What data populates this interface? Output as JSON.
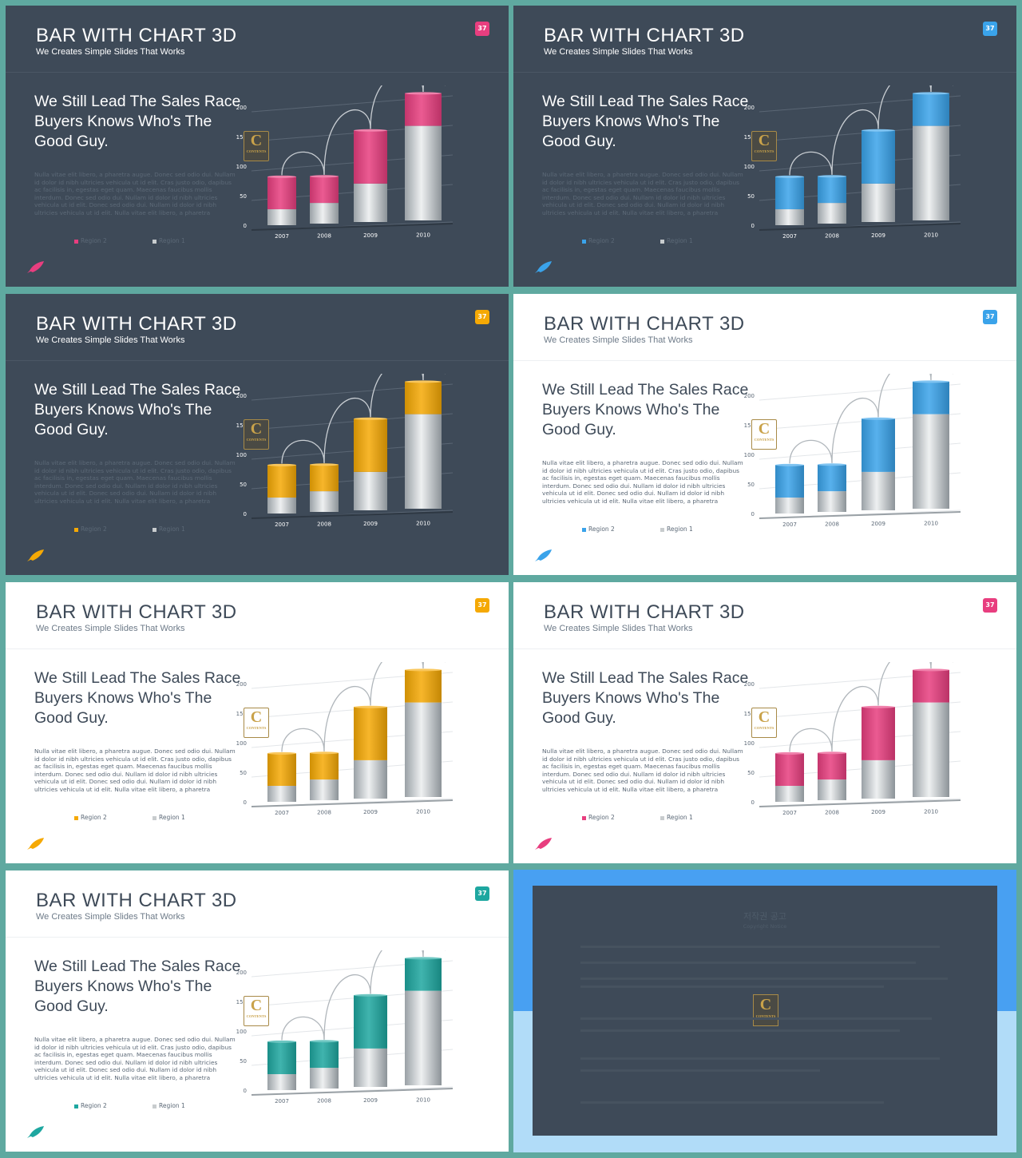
{
  "theme": {
    "dark_bg": "#3e4a58",
    "light_bg": "#ffffff",
    "frame": "#5fa9a0",
    "silver": "#c8ccce"
  },
  "slides": [
    {
      "title": "BAR WITH CHART 3D",
      "subtitle": "We Creates Simple Slides That Works",
      "badge": "37",
      "variant": "dark",
      "accent": "#e83e7f",
      "heading_lines": [
        "We Still Lead The Sales Race",
        "Buyers Knows Who's The",
        "Good Guy."
      ],
      "body": "Nulla vitae elit libero, a pharetra augue. Donec sed odio dui. Nullam id dolor id nibh ultricies vehicula ut id elit. Cras justo odio, dapibus ac facilisis in, egestas eget quam. Maecenas faucibus mollis interdum. Donec sed odio dui. Nullam id dolor id nibh ultricies vehicula ut id elit. Donec sed odio dui. Nullam id dolor id nibh ultricies vehicula ut id elit. Nulla vitae elit libero, a pharetra",
      "legend": [
        "Region 2",
        "Region 1"
      ],
      "logo_text": "C",
      "logo_sub": "CONTENTS"
    },
    {
      "title": "BAR WITH CHART 3D",
      "subtitle": "We Creates Simple Slides That Works",
      "badge": "37",
      "variant": "dark",
      "accent": "#3aa3ea",
      "heading_lines": [
        "We Still Lead The Sales Race",
        "Buyers Knows Who's The",
        "Good Guy."
      ],
      "body": "Nulla vitae elit libero, a pharetra augue. Donec sed odio dui. Nullam id dolor id nibh ultricies vehicula ut id elit. Cras justo odio, dapibus ac facilisis in, egestas eget quam. Maecenas faucibus mollis interdum. Donec sed odio dui. Nullam id dolor id nibh ultricies vehicula ut id elit. Donec sed odio dui. Nullam id dolor id nibh ultricies vehicula ut id elit. Nulla vitae elit libero, a pharetra",
      "legend": [
        "Region 2",
        "Region 1"
      ],
      "logo_text": "C",
      "logo_sub": "CONTENTS"
    },
    {
      "title": "BAR WITH CHART 3D",
      "subtitle": "We Creates Simple Slides That Works",
      "badge": "37",
      "variant": "dark",
      "accent": "#f5a905",
      "heading_lines": [
        "We Still Lead The Sales Race",
        "Buyers Knows Who's The",
        "Good Guy."
      ],
      "body": "Nulla vitae elit libero, a pharetra augue. Donec sed odio dui. Nullam id dolor id nibh ultricies vehicula ut id elit. Cras justo odio, dapibus ac facilisis in, egestas eget quam. Maecenas faucibus mollis interdum. Donec sed odio dui. Nullam id dolor id nibh ultricies vehicula ut id elit. Donec sed odio dui. Nullam id dolor id nibh ultricies vehicula ut id elit. Nulla vitae elit libero, a pharetra",
      "legend": [
        "Region 2",
        "Region 1"
      ],
      "logo_text": "C",
      "logo_sub": "CONTENTS"
    },
    {
      "title": "BAR WITH CHART 3D",
      "subtitle": "We Creates Simple Slides That Works",
      "badge": "37",
      "variant": "light",
      "accent": "#3aa3ea",
      "heading_lines": [
        "We Still Lead The Sales Race",
        "Buyers Knows Who's The",
        "Good Guy."
      ],
      "body": "Nulla vitae elit libero, a pharetra augue. Donec sed odio dui. Nullam id dolor id nibh ultricies vehicula ut id elit. Cras justo odio, dapibus ac facilisis in, egestas eget quam. Maecenas faucibus mollis interdum. Donec sed odio dui. Nullam id dolor id nibh ultricies vehicula ut id elit. Donec sed odio dui. Nullam id dolor id nibh ultricies vehicula ut id elit. Nulla vitae elit libero, a pharetra",
      "legend": [
        "Region 2",
        "Region 1"
      ],
      "logo_text": "C",
      "logo_sub": "CONTENTS"
    },
    {
      "title": "BAR WITH CHART 3D",
      "subtitle": "We Creates Simple Slides That Works",
      "badge": "37",
      "variant": "light",
      "accent": "#f5a905",
      "heading_lines": [
        "We Still Lead The Sales Race",
        "Buyers Knows Who's The",
        "Good Guy."
      ],
      "body": "Nulla vitae elit libero, a pharetra augue. Donec sed odio dui. Nullam id dolor id nibh ultricies vehicula ut id elit. Cras justo odio, dapibus ac facilisis in, egestas eget quam. Maecenas faucibus mollis interdum. Donec sed odio dui. Nullam id dolor id nibh ultricies vehicula ut id elit. Donec sed odio dui. Nullam id dolor id nibh ultricies vehicula ut id elit. Nulla vitae elit libero, a pharetra",
      "legend": [
        "Region 2",
        "Region 1"
      ],
      "logo_text": "C",
      "logo_sub": "CONTENTS"
    },
    {
      "title": "BAR WITH CHART 3D",
      "subtitle": "We Creates Simple Slides That Works",
      "badge": "37",
      "variant": "light",
      "accent": "#e83e7f",
      "heading_lines": [
        "We Still Lead The Sales Race",
        "Buyers Knows Who's The",
        "Good Guy."
      ],
      "body": "Nulla vitae elit libero, a pharetra augue. Donec sed odio dui. Nullam id dolor id nibh ultricies vehicula ut id elit. Cras justo odio, dapibus ac facilisis in, egestas eget quam. Maecenas faucibus mollis interdum. Donec sed odio dui. Nullam id dolor id nibh ultricies vehicula ut id elit. Donec sed odio dui. Nullam id dolor id nibh ultricies vehicula ut id elit. Nulla vitae elit libero, a pharetra",
      "legend": [
        "Region 2",
        "Region 1"
      ],
      "logo_text": "C",
      "logo_sub": "CONTENTS"
    },
    {
      "title": "BAR WITH CHART 3D",
      "subtitle": "We Creates Simple Slides That Works",
      "badge": "37",
      "variant": "light",
      "accent": "#1ea7a0",
      "heading_lines": [
        "We Still Lead The Sales Race",
        "Buyers Knows Who's The",
        "Good Guy."
      ],
      "body": "Nulla vitae elit libero, a pharetra augue. Donec sed odio dui. Nullam id dolor id nibh ultricies vehicula ut id elit. Cras justo odio, dapibus ac facilisis in, egestas eget quam. Maecenas faucibus mollis interdum. Donec sed odio dui. Nullam id dolor id nibh ultricies vehicula ut id elit. Donec sed odio dui. Nullam id dolor id nibh ultricies vehicula ut id elit. Nulla vitae elit libero, a pharetra",
      "legend": [
        "Region 2",
        "Region 1"
      ],
      "logo_text": "C",
      "logo_sub": "CONTENTS"
    }
  ],
  "copyright": {
    "title": "저작권 공고",
    "subtitle": "Copyright Notice",
    "logo_text": "C",
    "logo_sub": "CONTENTS"
  },
  "chart_data": {
    "type": "bar",
    "stacked": true,
    "categories": [
      "2007",
      "2008",
      "2009",
      "2010"
    ],
    "series": [
      {
        "name": "Region 1",
        "values": [
          27,
          35,
          65,
          160
        ]
      },
      {
        "name": "Region 2",
        "values": [
          55,
          45,
          90,
          55
        ]
      }
    ],
    "yticks": [
      0,
      50,
      100,
      150,
      200
    ],
    "ylim": [
      0,
      200
    ]
  }
}
